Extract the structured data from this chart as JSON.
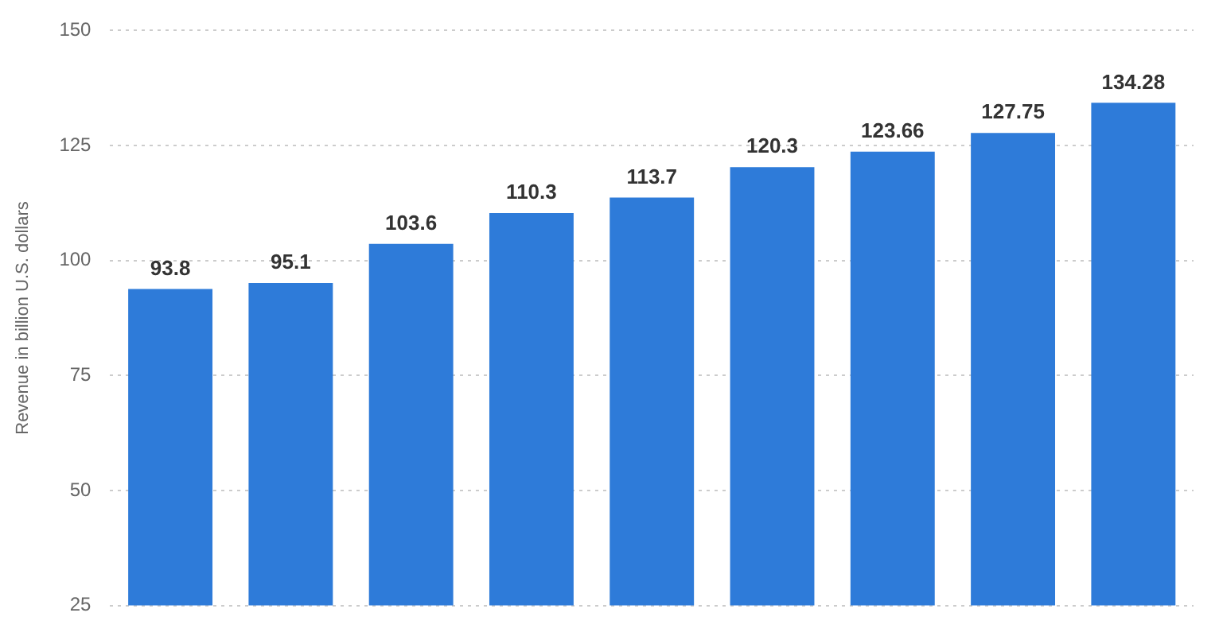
{
  "chart_data": {
    "type": "bar",
    "ylabel": "Revenue in billion U.S. dollars",
    "categories": [
      null,
      null,
      null,
      null,
      null,
      null,
      null,
      null,
      null
    ],
    "values": [
      93.8,
      95.1,
      103.6,
      110.3,
      113.7,
      120.3,
      123.66,
      127.75,
      134.28
    ],
    "color": "#2e7bd9",
    "ylim": [
      25,
      150
    ],
    "yticks": [
      25,
      50,
      75,
      100,
      125,
      150
    ],
    "grid": "y",
    "data_labels": true,
    "tick_labels": "y",
    "legend": false
  }
}
